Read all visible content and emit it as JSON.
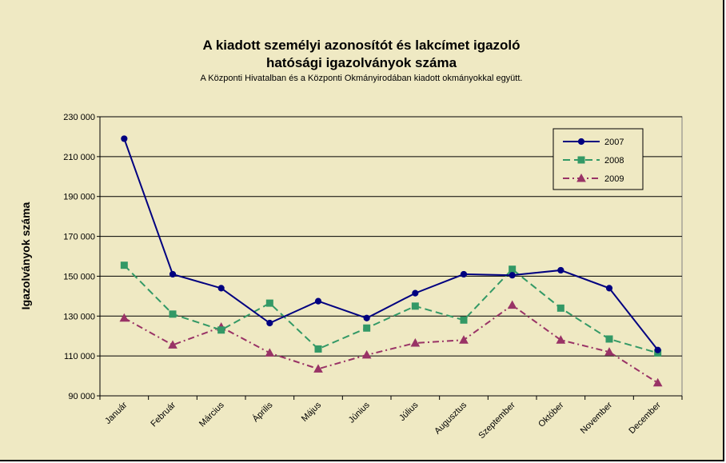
{
  "chart_data": {
    "type": "line",
    "title_line1": "A kiadott személyi azonosítót és lakcímet igazoló",
    "title_line2": "hatósági igazolványok száma",
    "subtitle": "A Központi Hivatalban és a Központi Okmányirodában kiadott okmányokkal együtt.",
    "ylabel": "Igazolványok száma",
    "xlabel": "",
    "ylim": [
      90000,
      230000
    ],
    "yticks": [
      90000,
      110000,
      130000,
      150000,
      170000,
      190000,
      210000,
      230000
    ],
    "ytick_labels": [
      "90 000",
      "110 000",
      "130 000",
      "150 000",
      "170 000",
      "190 000",
      "210 000",
      "230 000"
    ],
    "grid": true,
    "legend_position": "top-right",
    "categories": [
      "Január",
      "Február",
      "Március",
      "Április",
      "Május",
      "Június",
      "Július",
      "Augusztus",
      "Szeptember",
      "Október",
      "November",
      "December"
    ],
    "series": [
      {
        "name": "2007",
        "color": "#000080",
        "marker": "diamond",
        "dash": "solid",
        "values": [
          219000,
          151000,
          144000,
          126500,
          137500,
          129000,
          141500,
          151000,
          150500,
          153000,
          144000,
          113000
        ]
      },
      {
        "name": "2008",
        "color": "#339966",
        "marker": "square",
        "dash": "dashed",
        "values": [
          155500,
          131000,
          123000,
          136500,
          113500,
          124000,
          135000,
          128000,
          153500,
          134000,
          118500,
          111500
        ]
      },
      {
        "name": "2009",
        "color": "#993366",
        "marker": "triangle",
        "dash": "dashdot",
        "values": [
          129000,
          115500,
          124500,
          111500,
          103500,
          110500,
          116500,
          118000,
          135500,
          118000,
          112000,
          96500
        ]
      }
    ]
  }
}
